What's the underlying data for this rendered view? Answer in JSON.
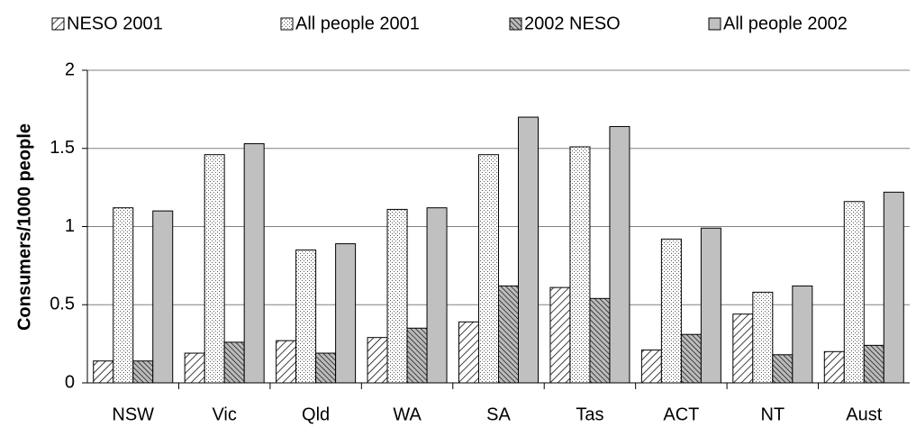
{
  "chart_data": {
    "type": "bar",
    "y_label": "Consumers/1000 people",
    "categories": [
      "NSW",
      "Vic",
      "Qld",
      "WA",
      "SA",
      "Tas",
      "ACT",
      "NT",
      "Aust"
    ],
    "series": [
      {
        "name": "NESO 2001",
        "color": "#000000",
        "pattern": "hatch",
        "values": [
          0.14,
          0.19,
          0.27,
          0.29,
          0.39,
          0.61,
          0.21,
          0.44,
          0.2
        ]
      },
      {
        "name": "All people 2001",
        "color": "#000000",
        "pattern": "dots",
        "values": [
          1.12,
          1.46,
          0.85,
          1.11,
          1.46,
          1.51,
          0.92,
          0.58,
          1.16
        ]
      },
      {
        "name": "2002 NESO",
        "color": "#000000",
        "pattern": "dense-hatch",
        "values": [
          0.14,
          0.26,
          0.19,
          0.35,
          0.62,
          0.54,
          0.31,
          0.18,
          0.24
        ]
      },
      {
        "name": "All people 2002",
        "color": "#c0c0c0",
        "pattern": "solid",
        "values": [
          1.1,
          1.53,
          0.89,
          1.12,
          1.7,
          1.64,
          0.99,
          0.62,
          1.22
        ]
      }
    ],
    "ylim": [
      0,
      2
    ],
    "yticks": [
      0,
      0.5,
      1,
      1.5,
      2
    ],
    "grid": true,
    "legend": "top"
  }
}
